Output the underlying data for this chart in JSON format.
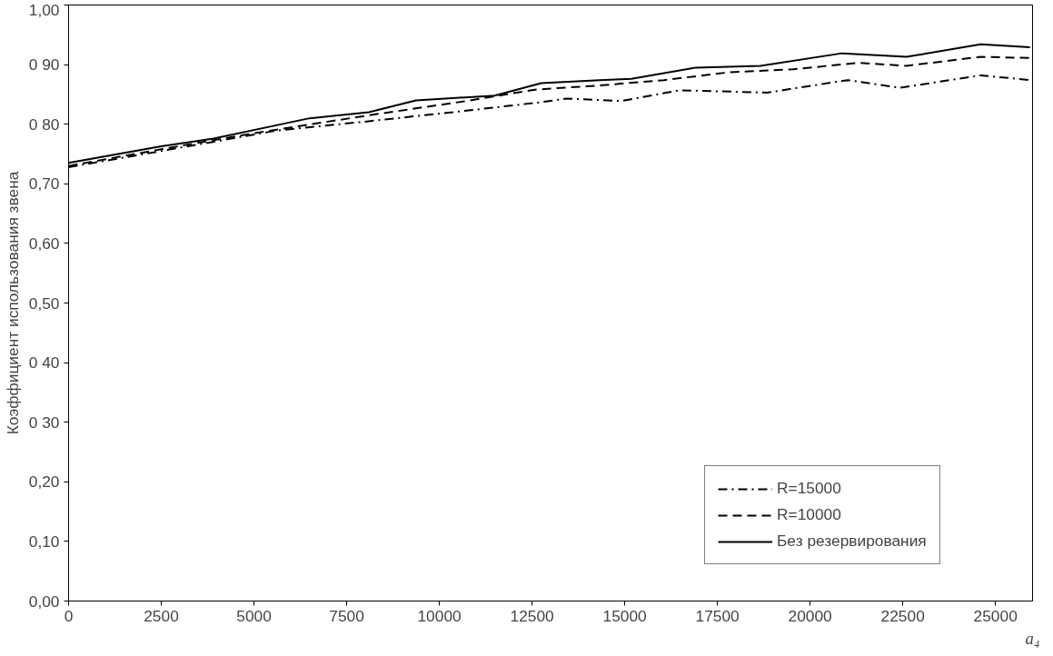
{
  "chart_data": {
    "type": "line",
    "xlabel": "a₄",
    "ylabel": "Коэффициент использования звена",
    "xlim": [
      0,
      26000
    ],
    "ylim": [
      0,
      1
    ],
    "xticks": [
      0,
      2500,
      5000,
      7500,
      10000,
      12500,
      15000,
      17500,
      20000,
      22500,
      25000
    ],
    "yticks": [
      {
        "value": 0,
        "label": "0,00"
      },
      {
        "value": 0.1,
        "label": "0,10"
      },
      {
        "value": 0.2,
        "label": "0,20"
      },
      {
        "value": 0.3,
        "label": "0 30"
      },
      {
        "value": 0.4,
        "label": "0 40"
      },
      {
        "value": 0.5,
        "label": "0,50"
      },
      {
        "value": 0.6,
        "label": "0,60"
      },
      {
        "value": 0.7,
        "label": "0,70"
      },
      {
        "value": 0.8,
        "label": "0 80"
      },
      {
        "value": 0.9,
        "label": "0 90"
      },
      {
        "value": 1,
        "label": "1,00"
      }
    ],
    "grid": false,
    "legend": "bottom right",
    "marker": "none",
    "series": [
      {
        "name": "R=15000",
        "color": "#000000",
        "line_style": "dashdot",
        "x": [
          0,
          2500,
          5580,
          8100,
          10630,
          12750,
          13430,
          14920,
          16490,
          18840,
          21010,
          22420,
          24600,
          25930
        ],
        "values": [
          0.728,
          0.755,
          0.789,
          0.805,
          0.822,
          0.837,
          0.843,
          0.839,
          0.857,
          0.853,
          0.874,
          0.861,
          0.882,
          0.874
        ]
      },
      {
        "name": "R=10000",
        "color": "#000000",
        "line_style": "dashed",
        "x": [
          0,
          2500,
          5000,
          8100,
          10630,
          12580,
          14320,
          16060,
          17800,
          19540,
          21280,
          22600,
          24600,
          25930
        ],
        "values": [
          0.73,
          0.758,
          0.785,
          0.815,
          0.838,
          0.858,
          0.865,
          0.874,
          0.887,
          0.892,
          0.903,
          0.898,
          0.913,
          0.911
        ]
      },
      {
        "name": "Без резервирования",
        "color": "#000000",
        "line_style": "solid",
        "x": [
          0,
          2500,
          3914,
          6500,
          8100,
          9370,
          11490,
          12750,
          14320,
          15180,
          16920,
          18660,
          20860,
          22600,
          24600,
          25930
        ],
        "values": [
          0.735,
          0.763,
          0.776,
          0.81,
          0.82,
          0.84,
          0.848,
          0.869,
          0.874,
          0.876,
          0.895,
          0.898,
          0.919,
          0.913,
          0.934,
          0.929
        ]
      }
    ]
  }
}
